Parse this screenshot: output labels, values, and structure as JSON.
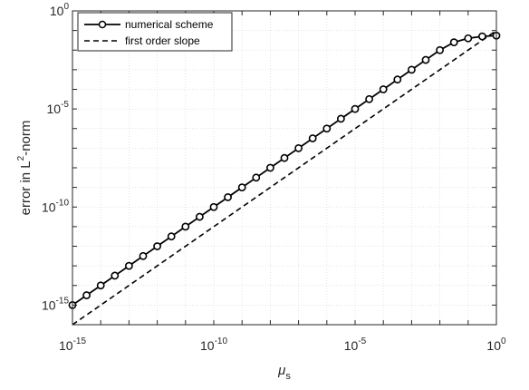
{
  "chart_data": {
    "type": "line",
    "xscale": "log",
    "yscale": "log",
    "xlim": [
      1e-15,
      1
    ],
    "ylim": [
      1e-16,
      1
    ],
    "grid": true,
    "minor_grid": true,
    "legend_position": "top-left",
    "x_tick_labels": [
      {
        "base": "10",
        "exp": "-15",
        "value": 1e-15
      },
      {
        "base": "10",
        "exp": "-10",
        "value": 1e-10
      },
      {
        "base": "10",
        "exp": "-5",
        "value": 1e-05
      },
      {
        "base": "10",
        "exp": "0",
        "value": 1
      }
    ],
    "y_tick_labels": [
      {
        "base": "10",
        "exp": "-15",
        "value": 1e-15
      },
      {
        "base": "10",
        "exp": "-10",
        "value": 1e-10
      },
      {
        "base": "10",
        "exp": "-5",
        "value": 1e-05
      },
      {
        "base": "10",
        "exp": "0",
        "value": 1
      }
    ],
    "xlabel": {
      "symbol": "μ",
      "subscript": "s"
    },
    "ylabel": {
      "before": "error in L",
      "superscript": "2",
      "after": "-norm"
    },
    "series": [
      {
        "name": "numerical scheme",
        "style": "solid-circle-markers",
        "color": "#000000",
        "x": [
          1e-15,
          3.16e-15,
          1e-14,
          3.16e-14,
          1e-13,
          3.16e-13,
          1e-12,
          3.16e-12,
          1e-11,
          3.16e-11,
          1e-10,
          3.16e-10,
          1e-09,
          3.16e-09,
          1e-08,
          3.16e-08,
          1e-07,
          3.16e-07,
          1e-06,
          3.16e-06,
          1e-05,
          3.16e-05,
          0.0001,
          0.000316,
          0.001,
          0.00316,
          0.01,
          0.0316,
          0.1,
          0.316,
          1
        ],
        "y": [
          1e-15,
          3.16e-15,
          1e-14,
          3.16e-14,
          1e-13,
          3.16e-13,
          1e-12,
          3.16e-12,
          1e-11,
          3.16e-11,
          1e-10,
          3.16e-10,
          1e-09,
          3.16e-09,
          1e-08,
          3.16e-08,
          1e-07,
          3.16e-07,
          1e-06,
          3.16e-06,
          1e-05,
          3.16e-05,
          0.0001,
          0.000316,
          0.001,
          0.00316,
          0.01,
          0.025,
          0.04,
          0.05,
          0.055
        ]
      },
      {
        "name": "first order slope",
        "style": "dashed",
        "color": "#000000",
        "x": [
          1e-15,
          1
        ],
        "y": [
          1e-16,
          0.1
        ]
      }
    ]
  }
}
